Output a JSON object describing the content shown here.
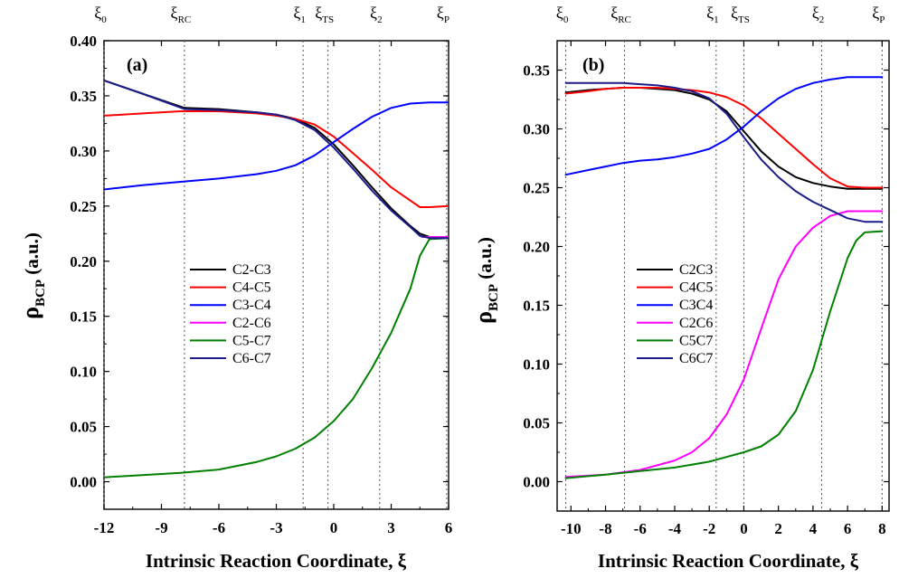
{
  "chart_data": [
    {
      "panel": "(a)",
      "type": "line",
      "xlabel": "Intrinsic Reaction Coordinate, ξ",
      "ylabel": "ρ",
      "ylabel_sub": "BCP",
      "ylabel_unit": "(a.u.)",
      "xlim": [
        -12,
        6
      ],
      "ylim": [
        -0.025,
        0.4
      ],
      "xticks": [
        -12,
        -9,
        -6,
        -3,
        0,
        3,
        6
      ],
      "xtick_labels": [
        "-12",
        "-9",
        "-6",
        "-3",
        "0",
        "3",
        "6"
      ],
      "yticks": [
        0.0,
        0.05,
        0.1,
        0.15,
        0.2,
        0.25,
        0.3,
        0.35,
        0.4
      ],
      "ytick_labels": [
        "0.00",
        "0.05",
        "0.10",
        "0.15",
        "0.20",
        "0.25",
        "0.30",
        "0.35",
        "0.40"
      ],
      "markers": [
        {
          "x": -12,
          "main": "ξ",
          "sub": "0"
        },
        {
          "x": -7.8,
          "main": "ξ",
          "sub": "RC"
        },
        {
          "x": -1.6,
          "main": "ξ",
          "sub": "1"
        },
        {
          "x": -0.3,
          "main": "ξ",
          "sub": "TS"
        },
        {
          "x": 2.4,
          "main": "ξ",
          "sub": "2"
        },
        {
          "x": 5.9,
          "main": "ξ",
          "sub": "P"
        }
      ],
      "legend_position": "center",
      "series": [
        {
          "name": "C2-C3",
          "color": "#000000",
          "x": [
            -12,
            -10,
            -7.8,
            -6,
            -4,
            -3,
            -2,
            -1,
            0,
            1,
            2,
            3,
            4,
            4.5,
            5,
            6
          ],
          "y": [
            0.364,
            0.352,
            0.339,
            0.338,
            0.335,
            0.333,
            0.329,
            0.321,
            0.306,
            0.287,
            0.267,
            0.248,
            0.232,
            0.225,
            0.222,
            0.222
          ]
        },
        {
          "name": "C4-C5",
          "color": "#ff0000",
          "x": [
            -12,
            -10,
            -8,
            -6,
            -4,
            -3,
            -2,
            -1,
            0,
            1,
            2,
            3,
            4,
            4.5,
            5,
            6
          ],
          "y": [
            0.332,
            0.334,
            0.336,
            0.336,
            0.334,
            0.332,
            0.329,
            0.324,
            0.313,
            0.298,
            0.283,
            0.267,
            0.255,
            0.249,
            0.249,
            0.25
          ]
        },
        {
          "name": "C3-C4",
          "color": "#0000ff",
          "x": [
            -12,
            -10,
            -8,
            -6,
            -4,
            -3,
            -2,
            -1,
            0,
            1,
            2,
            3,
            4,
            5,
            6
          ],
          "y": [
            0.265,
            0.269,
            0.272,
            0.275,
            0.279,
            0.282,
            0.287,
            0.296,
            0.308,
            0.32,
            0.331,
            0.339,
            0.343,
            0.344,
            0.344
          ]
        },
        {
          "name": "C2-C6",
          "color": "#ff00ff",
          "x": [
            4.6,
            5.0,
            6.0
          ],
          "y": [
            0.222,
            0.222,
            0.222
          ]
        },
        {
          "name": "C5-C7",
          "color": "#008000",
          "x": [
            -12,
            -10,
            -8,
            -6,
            -4,
            -3,
            -2,
            -1,
            0,
            1,
            2,
            3,
            4,
            4.5,
            5,
            6
          ],
          "y": [
            0.004,
            0.006,
            0.008,
            0.011,
            0.018,
            0.023,
            0.03,
            0.04,
            0.055,
            0.075,
            0.103,
            0.135,
            0.175,
            0.205,
            0.22,
            0.221
          ]
        },
        {
          "name": "C6-C7",
          "color": "#1c1c8c",
          "x": [
            -12,
            -10,
            -7.8,
            -6,
            -4,
            -3,
            -2,
            -1,
            0,
            1,
            2,
            3,
            4,
            4.5,
            5,
            6
          ],
          "y": [
            0.364,
            0.352,
            0.338,
            0.337,
            0.335,
            0.333,
            0.328,
            0.319,
            0.303,
            0.284,
            0.264,
            0.246,
            0.231,
            0.223,
            0.221,
            0.221
          ]
        }
      ]
    },
    {
      "panel": "(b)",
      "type": "line",
      "xlabel": "Intrinsic Reaction Coordinate, ξ",
      "ylabel": "ρ",
      "ylabel_sub": "BCP",
      "ylabel_unit": "(a.u.)",
      "xlim": [
        -10.8,
        8.4
      ],
      "ylim": [
        -0.025,
        0.375
      ],
      "xticks": [
        -10,
        -8,
        -6,
        -4,
        -2,
        0,
        2,
        4,
        6,
        8
      ],
      "xtick_labels": [
        "-10",
        "-8",
        "-6",
        "-4",
        "-2",
        "0",
        "2",
        "4",
        "6",
        "8"
      ],
      "yticks": [
        0.0,
        0.05,
        0.1,
        0.15,
        0.2,
        0.25,
        0.3,
        0.35
      ],
      "ytick_labels": [
        "0.00",
        "0.05",
        "0.10",
        "0.15",
        "0.20",
        "0.25",
        "0.30",
        "0.35"
      ],
      "markers": [
        {
          "x": -10.3,
          "main": "ξ",
          "sub": "0"
        },
        {
          "x": -6.9,
          "main": "ξ",
          "sub": "RC"
        },
        {
          "x": -1.6,
          "main": "ξ",
          "sub": "1"
        },
        {
          "x": 0.0,
          "main": "ξ",
          "sub": "TS"
        },
        {
          "x": 4.5,
          "main": "ξ",
          "sub": "2"
        },
        {
          "x": 8.0,
          "main": "ξ",
          "sub": "P"
        }
      ],
      "legend_position": "center-left",
      "series": [
        {
          "name": "C2C3",
          "color": "#000000",
          "x": [
            -10.3,
            -9,
            -8,
            -7,
            -6,
            -5,
            -4,
            -3,
            -2,
            -1,
            0,
            1,
            2,
            3,
            4,
            5,
            6,
            7,
            8
          ],
          "y": [
            0.331,
            0.333,
            0.334,
            0.335,
            0.335,
            0.334,
            0.333,
            0.33,
            0.325,
            0.315,
            0.298,
            0.281,
            0.268,
            0.259,
            0.254,
            0.251,
            0.249,
            0.249,
            0.249
          ]
        },
        {
          "name": "C4C5",
          "color": "#ff0000",
          "x": [
            -10.3,
            -9,
            -8,
            -7,
            -6,
            -5,
            -4,
            -3,
            -2,
            -1,
            0,
            1,
            2,
            3,
            4,
            5,
            6,
            7,
            8
          ],
          "y": [
            0.33,
            0.332,
            0.334,
            0.335,
            0.335,
            0.335,
            0.334,
            0.333,
            0.331,
            0.327,
            0.32,
            0.309,
            0.296,
            0.283,
            0.27,
            0.258,
            0.251,
            0.25,
            0.25
          ]
        },
        {
          "name": "C3C4",
          "color": "#0000ff",
          "x": [
            -10.3,
            -9,
            -8,
            -7,
            -6,
            -5,
            -4,
            -3,
            -2,
            -1,
            0,
            1,
            2,
            3,
            4,
            5,
            6,
            7,
            8
          ],
          "y": [
            0.261,
            0.265,
            0.268,
            0.271,
            0.273,
            0.274,
            0.276,
            0.279,
            0.283,
            0.291,
            0.302,
            0.315,
            0.326,
            0.334,
            0.339,
            0.342,
            0.344,
            0.344,
            0.344
          ]
        },
        {
          "name": "C2C6",
          "color": "#ff00ff",
          "x": [
            -10.3,
            -8,
            -6,
            -4,
            -3,
            -2,
            -1,
            0,
            1,
            2,
            3,
            4,
            5,
            6,
            7,
            8
          ],
          "y": [
            0.004,
            0.006,
            0.01,
            0.018,
            0.025,
            0.037,
            0.057,
            0.087,
            0.13,
            0.172,
            0.2,
            0.216,
            0.226,
            0.23,
            0.23,
            0.23
          ]
        },
        {
          "name": "C5C7",
          "color": "#008000",
          "x": [
            -10.3,
            -8,
            -6,
            -4,
            -2,
            -1,
            0,
            1,
            2,
            3,
            4,
            5,
            6,
            6.5,
            7,
            8
          ],
          "y": [
            0.003,
            0.006,
            0.009,
            0.012,
            0.017,
            0.021,
            0.025,
            0.03,
            0.04,
            0.06,
            0.095,
            0.145,
            0.19,
            0.205,
            0.212,
            0.213
          ]
        },
        {
          "name": "C6C7",
          "color": "#1c1c8c",
          "x": [
            -10.3,
            -9,
            -8,
            -7,
            -6,
            -5,
            -4,
            -3,
            -2,
            -1,
            0,
            1,
            2,
            3,
            4,
            5,
            6,
            7,
            8
          ],
          "y": [
            0.339,
            0.339,
            0.339,
            0.339,
            0.338,
            0.337,
            0.335,
            0.332,
            0.326,
            0.313,
            0.293,
            0.274,
            0.259,
            0.247,
            0.238,
            0.231,
            0.224,
            0.221,
            0.221
          ]
        }
      ]
    }
  ]
}
